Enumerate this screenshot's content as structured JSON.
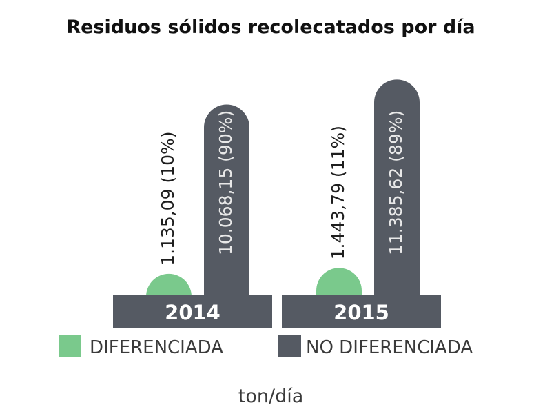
{
  "chart_data": {
    "type": "bar",
    "title": "Residuos sólidos recolecatados por día",
    "categories": [
      "2014",
      "2015"
    ],
    "series": [
      {
        "name": "DIFERENCIADA",
        "color": "#7ac98c",
        "values": [
          1135.09,
          1443.79
        ],
        "value_labels": [
          "1.135,09",
          "1.443,79"
        ],
        "percent_labels": [
          "(10%)",
          "(11%)"
        ]
      },
      {
        "name": "NO DIFERENCIADA",
        "color": "#555a63",
        "values": [
          10068.15,
          11385.62
        ],
        "value_labels": [
          "10.068,15",
          "11.385,62"
        ],
        "percent_labels": [
          "(90%)",
          "(89%)"
        ]
      }
    ],
    "unit_label": "ton/día",
    "legend_position": "bottom",
    "axis_color": "#555a63"
  }
}
